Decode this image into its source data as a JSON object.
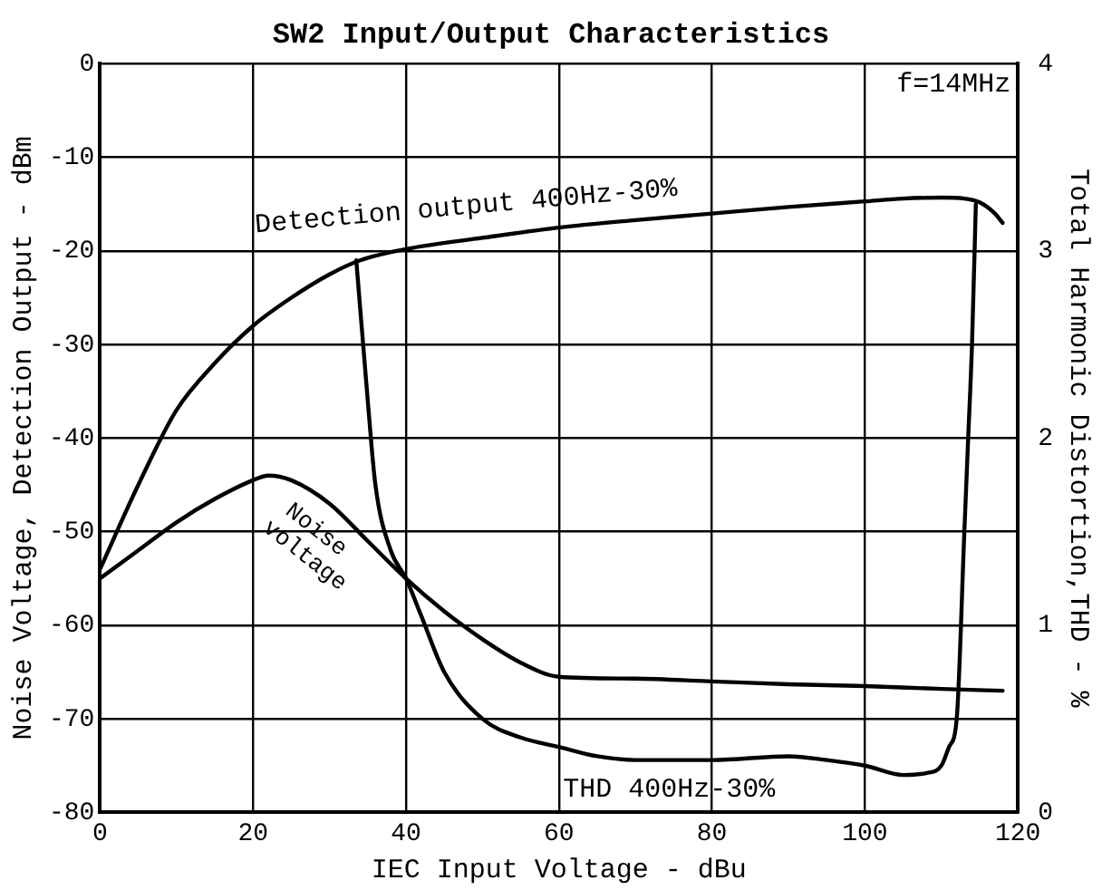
{
  "chart_data": {
    "type": "line",
    "title": "SW2 Input/Output Characteristics",
    "xlabel": "IEC Input Voltage - dBu",
    "ylabel": "Noise Voltage, Detection Output - dBm",
    "y2label": "Total Harmonic Distortion,THD - %",
    "annotations": [
      "f=14MHz"
    ],
    "xlim": [
      0,
      120
    ],
    "xticks": [
      0,
      20,
      40,
      60,
      80,
      100,
      120
    ],
    "ylim": [
      -80,
      0
    ],
    "yticks": [
      -80,
      -70,
      -60,
      -50,
      -40,
      -30,
      -20,
      -10,
      0
    ],
    "y2lim": [
      0,
      4
    ],
    "y2ticks": [
      0,
      1,
      2,
      3,
      4
    ],
    "grid": true,
    "legend": false,
    "marker": "none",
    "line_style": "solid",
    "series": [
      {
        "name": "Detection output 400Hz-30%",
        "color": "#000000",
        "x": [
          0,
          5,
          10,
          15,
          20,
          25,
          30,
          34,
          40,
          50,
          60,
          70,
          80,
          90,
          100,
          105,
          110,
          113,
          115,
          117,
          118
        ],
        "values": [
          -54,
          -45,
          -37,
          -32,
          -28,
          -25,
          -22.5,
          -21,
          -19.8,
          -18.6,
          -17.5,
          -16.7,
          -16,
          -15.3,
          -14.7,
          -14.4,
          -14.3,
          -14.4,
          -14.8,
          -16,
          -17
        ]
      },
      {
        "name": "Noise voltage",
        "color": "#000000",
        "x": [
          0,
          5,
          10,
          15,
          20,
          22,
          25,
          30,
          35,
          40,
          45,
          50,
          55,
          60,
          70,
          80,
          90,
          100,
          110,
          118
        ],
        "values": [
          -55,
          -52,
          -49,
          -46.5,
          -44.5,
          -44,
          -44.5,
          -47,
          -51,
          -55,
          -58.5,
          -61.5,
          -64,
          -65.5,
          -65.7,
          -66,
          -66.3,
          -66.5,
          -66.8,
          -67
        ]
      },
      {
        "name": "THD 400Hz-30%",
        "color": "#000000",
        "axis": "y2",
        "x": [
          33.5,
          35,
          36,
          38,
          40,
          42,
          45,
          50,
          55,
          60,
          65,
          70,
          80,
          90,
          95,
          100,
          105,
          108,
          110,
          111,
          112,
          113,
          113.5,
          114,
          114.5
        ],
        "values": [
          2.95,
          2.2,
          1.75,
          1.4,
          1.25,
          1.05,
          0.75,
          0.5,
          0.4,
          0.35,
          0.3,
          0.28,
          0.28,
          0.3,
          0.28,
          0.25,
          0.2,
          0.21,
          0.25,
          0.35,
          0.5,
          1.5,
          2,
          2.5,
          3.25
        ]
      }
    ]
  }
}
